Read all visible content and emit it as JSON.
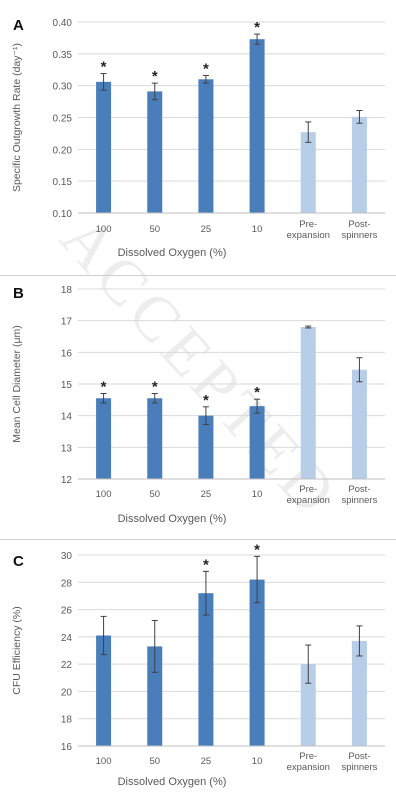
{
  "watermark": "ACCEPTED",
  "chart_data": [
    {
      "panel_label": "A",
      "type": "bar",
      "categories": [
        "100",
        "50",
        "25",
        "10",
        "Pre-\nexpansion",
        "Post-\nspinners"
      ],
      "values": [
        0.306,
        0.291,
        0.31,
        0.373,
        0.227,
        0.251
      ],
      "errors": [
        0.013,
        0.013,
        0.006,
        0.008,
        0.016,
        0.01
      ],
      "significant": [
        true,
        true,
        true,
        true,
        false,
        false
      ],
      "bar_colors": [
        "#4a7ebb",
        "#4a7ebb",
        "#4a7ebb",
        "#4a7ebb",
        "#b7cde8",
        "#b7cde8"
      ],
      "xlabel": "Dissolved Oxygen (%)",
      "ylabel": "Specific Outgrowth Rate (day⁻¹)",
      "ylim": [
        0.1,
        0.4
      ],
      "yticks": [
        "0.10",
        "0.15",
        "0.20",
        "0.25",
        "0.30",
        "0.35",
        "0.40"
      ],
      "grid": true,
      "marker": "*"
    },
    {
      "panel_label": "B",
      "type": "bar",
      "categories": [
        "100",
        "50",
        "25",
        "10",
        "Pre-\nexpansion",
        "Post-\nspinners"
      ],
      "values": [
        14.55,
        14.55,
        14.0,
        14.3,
        16.8,
        15.45
      ],
      "errors": [
        0.15,
        0.15,
        0.28,
        0.22,
        0.03,
        0.38
      ],
      "significant": [
        true,
        true,
        true,
        true,
        false,
        false
      ],
      "bar_colors": [
        "#4a7ebb",
        "#4a7ebb",
        "#4a7ebb",
        "#4a7ebb",
        "#b7cde8",
        "#b7cde8"
      ],
      "xlabel": "Dissolved Oxygen (%)",
      "ylabel": "Mean Cell Diameter  (μm)",
      "ylim": [
        12,
        18
      ],
      "yticks": [
        "12",
        "13",
        "14",
        "15",
        "16",
        "17",
        "18"
      ],
      "grid": true,
      "marker": "*"
    },
    {
      "panel_label": "C",
      "type": "bar",
      "categories": [
        "100",
        "50",
        "25",
        "10",
        "Pre-\nexpansion",
        "Post-\nspinners"
      ],
      "values": [
        24.1,
        23.3,
        27.2,
        28.2,
        22.0,
        23.7
      ],
      "errors": [
        1.4,
        1.9,
        1.6,
        1.7,
        1.4,
        1.1
      ],
      "significant": [
        false,
        false,
        true,
        true,
        false,
        false
      ],
      "bar_colors": [
        "#4a7ebb",
        "#4a7ebb",
        "#4a7ebb",
        "#4a7ebb",
        "#b7cde8",
        "#b7cde8"
      ],
      "xlabel": "Dissolved Oxygen (%)",
      "ylabel": "CFU Efficiency (%)",
      "ylim": [
        16,
        30
      ],
      "yticks": [
        "16",
        "18",
        "20",
        "22",
        "24",
        "26",
        "28",
        "30"
      ],
      "grid": true,
      "marker": "*"
    }
  ]
}
